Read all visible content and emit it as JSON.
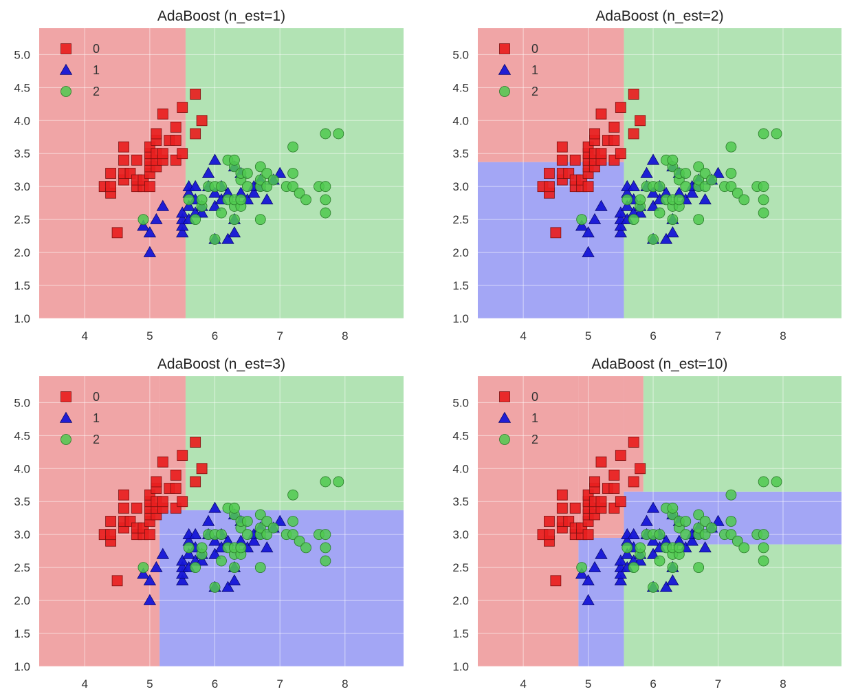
{
  "colors": {
    "class0_region": "#f0a5a6",
    "class1_region": "#a3a6f5",
    "class2_region": "#b2e3b4",
    "class0_marker": "#e81f1f",
    "class1_marker": "#1515d6",
    "class2_marker": "#4fc94f",
    "grid": "#ffffff"
  },
  "chart_data": [
    {
      "type": "scatter",
      "title": "AdaBoost (n_est=1)",
      "xlim": [
        3.3,
        8.9
      ],
      "ylim": [
        1.0,
        5.4
      ],
      "xticks": [
        4,
        5,
        6,
        7,
        8
      ],
      "yticks": [
        1.0,
        1.5,
        2.0,
        2.5,
        3.0,
        3.5,
        4.0,
        4.5,
        5.0
      ],
      "legend": [
        "0",
        "1",
        "2"
      ],
      "legend_position": "top-left",
      "regions": [
        {
          "class": 0,
          "x": [
            3.3,
            5.55
          ],
          "y": [
            1.0,
            5.4
          ]
        },
        {
          "class": 2,
          "x": [
            5.55,
            8.9
          ],
          "y": [
            1.0,
            5.4
          ]
        }
      ]
    },
    {
      "type": "scatter",
      "title": "AdaBoost (n_est=2)",
      "xlim": [
        3.3,
        8.9
      ],
      "ylim": [
        1.0,
        5.4
      ],
      "xticks": [
        4,
        5,
        6,
        7,
        8
      ],
      "yticks": [
        1.0,
        1.5,
        2.0,
        2.5,
        3.0,
        3.5,
        4.0,
        4.5,
        5.0
      ],
      "legend": [
        "0",
        "1",
        "2"
      ],
      "legend_position": "top-left",
      "regions": [
        {
          "class": 0,
          "x": [
            3.3,
            5.55
          ],
          "y": [
            3.37,
            5.4
          ]
        },
        {
          "class": 1,
          "x": [
            3.3,
            5.55
          ],
          "y": [
            1.0,
            3.37
          ]
        },
        {
          "class": 2,
          "x": [
            5.55,
            8.9
          ],
          "y": [
            1.0,
            5.4
          ]
        }
      ]
    },
    {
      "type": "scatter",
      "title": "AdaBoost (n_est=3)",
      "xlim": [
        3.3,
        8.9
      ],
      "ylim": [
        1.0,
        5.4
      ],
      "xticks": [
        4,
        5,
        6,
        7,
        8
      ],
      "yticks": [
        1.0,
        1.5,
        2.0,
        2.5,
        3.0,
        3.5,
        4.0,
        4.5,
        5.0
      ],
      "legend": [
        "0",
        "1",
        "2"
      ],
      "legend_position": "top-left",
      "regions": [
        {
          "class": 0,
          "x": [
            3.3,
            5.15
          ],
          "y": [
            1.0,
            5.4
          ]
        },
        {
          "class": 0,
          "x": [
            5.15,
            5.55
          ],
          "y": [
            3.37,
            5.4
          ]
        },
        {
          "class": 1,
          "x": [
            5.15,
            8.9
          ],
          "y": [
            1.0,
            3.37
          ]
        },
        {
          "class": 2,
          "x": [
            5.55,
            8.9
          ],
          "y": [
            3.37,
            5.4
          ]
        }
      ]
    },
    {
      "type": "scatter",
      "title": "AdaBoost (n_est=10)",
      "xlim": [
        3.3,
        8.9
      ],
      "ylim": [
        1.0,
        5.4
      ],
      "xticks": [
        4,
        5,
        6,
        7,
        8
      ],
      "yticks": [
        1.0,
        1.5,
        2.0,
        2.5,
        3.0,
        3.5,
        4.0,
        4.5,
        5.0
      ],
      "legend": [
        "0",
        "1",
        "2"
      ],
      "legend_position": "top-left",
      "regions": [
        {
          "class": 0,
          "x": [
            3.3,
            4.85
          ],
          "y": [
            1.0,
            5.4
          ]
        },
        {
          "class": 0,
          "x": [
            4.85,
            5.55
          ],
          "y": [
            2.95,
            5.4
          ]
        },
        {
          "class": 0,
          "x": [
            5.55,
            5.85
          ],
          "y": [
            3.65,
            5.4
          ]
        },
        {
          "class": 1,
          "x": [
            4.85,
            5.55
          ],
          "y": [
            1.0,
            2.95
          ]
        },
        {
          "class": 1,
          "x": [
            5.55,
            8.9
          ],
          "y": [
            2.85,
            3.65
          ]
        },
        {
          "class": 2,
          "x": [
            5.85,
            8.9
          ],
          "y": [
            3.65,
            5.4
          ]
        },
        {
          "class": 2,
          "x": [
            5.55,
            8.9
          ],
          "y": [
            1.0,
            2.85
          ]
        }
      ]
    }
  ],
  "points": {
    "class0": [
      [
        4.3,
        3.0
      ],
      [
        4.4,
        2.9
      ],
      [
        4.4,
        3.0
      ],
      [
        4.4,
        3.2
      ],
      [
        4.5,
        2.3
      ],
      [
        4.6,
        3.1
      ],
      [
        4.6,
        3.2
      ],
      [
        4.6,
        3.4
      ],
      [
        4.6,
        3.6
      ],
      [
        4.7,
        3.2
      ],
      [
        4.8,
        3.0
      ],
      [
        4.8,
        3.1
      ],
      [
        4.8,
        3.4
      ],
      [
        4.9,
        3.0
      ],
      [
        4.9,
        3.1
      ],
      [
        5.0,
        3.0
      ],
      [
        5.0,
        3.2
      ],
      [
        5.0,
        3.3
      ],
      [
        5.0,
        3.4
      ],
      [
        5.0,
        3.5
      ],
      [
        5.0,
        3.6
      ],
      [
        5.1,
        3.3
      ],
      [
        5.1,
        3.4
      ],
      [
        5.1,
        3.5
      ],
      [
        5.1,
        3.7
      ],
      [
        5.1,
        3.8
      ],
      [
        5.2,
        3.4
      ],
      [
        5.2,
        3.5
      ],
      [
        5.2,
        4.1
      ],
      [
        5.3,
        3.7
      ],
      [
        5.4,
        3.4
      ],
      [
        5.4,
        3.7
      ],
      [
        5.4,
        3.9
      ],
      [
        5.5,
        3.5
      ],
      [
        5.5,
        4.2
      ],
      [
        5.7,
        3.8
      ],
      [
        5.7,
        4.4
      ],
      [
        5.8,
        4.0
      ]
    ],
    "class1": [
      [
        4.9,
        2.4
      ],
      [
        5.0,
        2.0
      ],
      [
        5.0,
        2.3
      ],
      [
        5.1,
        2.5
      ],
      [
        5.2,
        2.7
      ],
      [
        5.5,
        2.3
      ],
      [
        5.5,
        2.4
      ],
      [
        5.5,
        2.5
      ],
      [
        5.5,
        2.6
      ],
      [
        5.6,
        2.5
      ],
      [
        5.6,
        2.7
      ],
      [
        5.6,
        2.9
      ],
      [
        5.6,
        3.0
      ],
      [
        5.7,
        2.6
      ],
      [
        5.7,
        2.8
      ],
      [
        5.7,
        3.0
      ],
      [
        5.8,
        2.6
      ],
      [
        5.8,
        2.7
      ],
      [
        5.9,
        3.0
      ],
      [
        5.9,
        3.2
      ],
      [
        6.0,
        2.2
      ],
      [
        6.0,
        2.7
      ],
      [
        6.0,
        2.9
      ],
      [
        6.0,
        3.4
      ],
      [
        6.1,
        2.8
      ],
      [
        6.1,
        3.0
      ],
      [
        6.2,
        2.2
      ],
      [
        6.2,
        2.9
      ],
      [
        6.3,
        2.3
      ],
      [
        6.3,
        2.5
      ],
      [
        6.3,
        3.3
      ],
      [
        6.4,
        2.9
      ],
      [
        6.4,
        3.2
      ],
      [
        6.5,
        2.8
      ],
      [
        6.6,
        2.9
      ],
      [
        6.6,
        3.0
      ],
      [
        6.7,
        3.0
      ],
      [
        6.7,
        3.1
      ],
      [
        6.8,
        2.8
      ],
      [
        6.9,
        3.1
      ],
      [
        7.0,
        3.2
      ]
    ],
    "class2": [
      [
        4.9,
        2.5
      ],
      [
        5.6,
        2.8
      ],
      [
        5.7,
        2.5
      ],
      [
        5.8,
        2.7
      ],
      [
        5.8,
        2.8
      ],
      [
        5.9,
        3.0
      ],
      [
        6.0,
        2.2
      ],
      [
        6.0,
        3.0
      ],
      [
        6.1,
        2.6
      ],
      [
        6.1,
        3.0
      ],
      [
        6.2,
        2.8
      ],
      [
        6.2,
        3.4
      ],
      [
        6.3,
        2.5
      ],
      [
        6.3,
        2.7
      ],
      [
        6.3,
        2.8
      ],
      [
        6.3,
        3.3
      ],
      [
        6.3,
        3.4
      ],
      [
        6.4,
        2.7
      ],
      [
        6.4,
        2.8
      ],
      [
        6.4,
        3.1
      ],
      [
        6.4,
        3.2
      ],
      [
        6.5,
        3.0
      ],
      [
        6.5,
        3.2
      ],
      [
        6.7,
        2.5
      ],
      [
        6.7,
        3.0
      ],
      [
        6.7,
        3.1
      ],
      [
        6.7,
        3.3
      ],
      [
        6.8,
        3.0
      ],
      [
        6.8,
        3.2
      ],
      [
        6.9,
        3.1
      ],
      [
        7.1,
        3.0
      ],
      [
        7.2,
        3.0
      ],
      [
        7.2,
        3.2
      ],
      [
        7.2,
        3.6
      ],
      [
        7.3,
        2.9
      ],
      [
        7.4,
        2.8
      ],
      [
        7.6,
        3.0
      ],
      [
        7.7,
        2.6
      ],
      [
        7.7,
        2.8
      ],
      [
        7.7,
        3.0
      ],
      [
        7.7,
        3.8
      ],
      [
        7.9,
        3.8
      ]
    ]
  }
}
